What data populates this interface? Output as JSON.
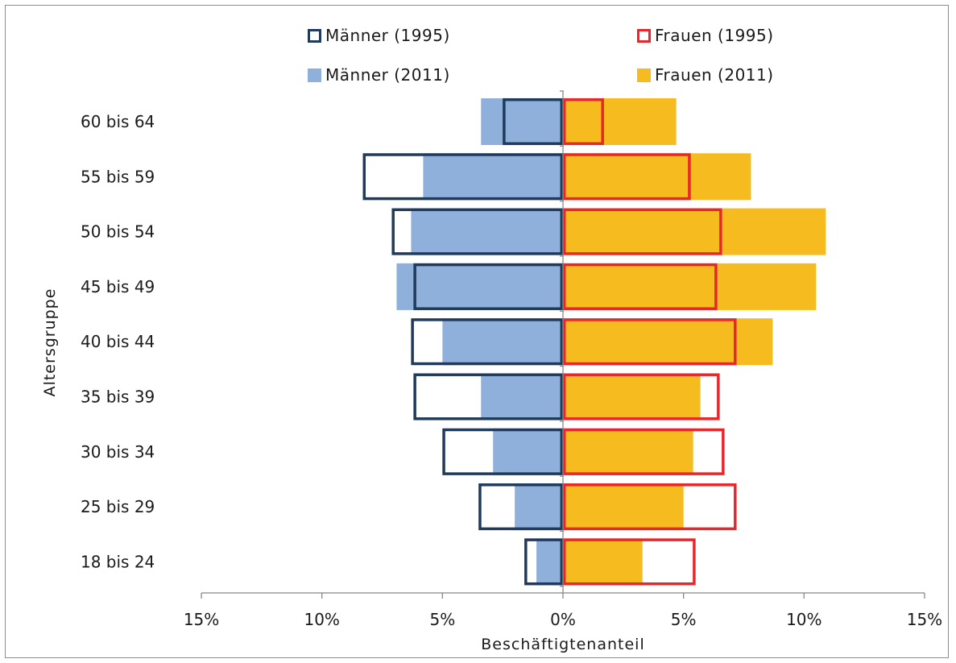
{
  "chart_data": {
    "type": "bar",
    "orientation": "horizontal",
    "layout": "population-pyramid",
    "xlabel": "Beschäftigtenanteil",
    "ylabel": "Altersgruppe",
    "xlim": [
      -15,
      15
    ],
    "x_ticks": [
      -15,
      -10,
      -5,
      0,
      5,
      10,
      15
    ],
    "x_tick_labels": [
      "15%",
      "10%",
      "5%",
      "0%",
      "5%",
      "10%",
      "15%"
    ],
    "categories": [
      "18 bis 24",
      "25 bis 29",
      "30 bis 34",
      "35 bis 39",
      "40 bis 44",
      "45 bis 49",
      "50 bis 54",
      "55 bis 59",
      "60 bis 64"
    ],
    "legend_placement": "top",
    "series": [
      {
        "name": "Männer (1995)",
        "side": "left",
        "style": "outline",
        "color": "#1f3a5a",
        "values": [
          1.6,
          3.5,
          5.0,
          6.2,
          6.3,
          6.2,
          7.1,
          8.3,
          2.5
        ]
      },
      {
        "name": "Frauen (1995)",
        "side": "right",
        "style": "outline",
        "color": "#e8262b",
        "values": [
          5.5,
          7.2,
          6.7,
          6.5,
          7.2,
          6.4,
          6.6,
          5.3,
          1.7
        ]
      },
      {
        "name": "Männer (2011)",
        "side": "left",
        "style": "fill",
        "color": "#8eb0db",
        "values": [
          1.1,
          2.0,
          2.9,
          3.4,
          5.0,
          6.9,
          6.3,
          5.8,
          3.4
        ]
      },
      {
        "name": "Frauen (2011)",
        "side": "right",
        "style": "fill",
        "color": "#f6bb1f",
        "values": [
          3.3,
          5.0,
          5.4,
          5.7,
          8.7,
          10.5,
          10.9,
          7.8,
          4.7
        ]
      }
    ]
  }
}
